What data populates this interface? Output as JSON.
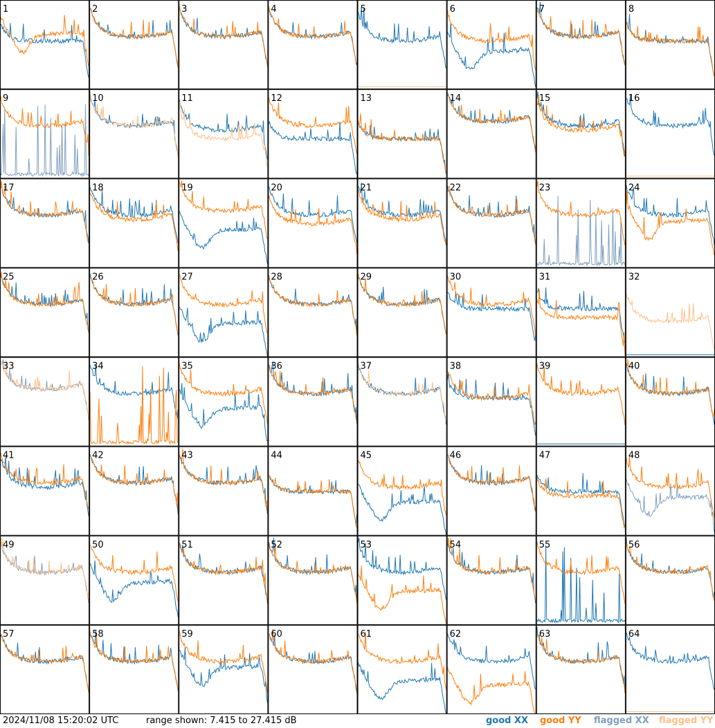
{
  "footer": {
    "timestamp": "2024/11/08 15:20:02 UTC",
    "range_text": "range shown: 7.415 to 27.415 dB"
  },
  "legend": {
    "good_xx": "good XX",
    "good_yy": "good YY",
    "flagged_xx": "flagged XX",
    "flagged_yy": "flagged YY"
  },
  "colors": {
    "good_xx": "#1f77b4",
    "good_yy": "#ff7f0e",
    "flagged_xx": "#7f9fbf",
    "flagged_yy": "#ffc08a"
  },
  "chart_data": {
    "type": "line",
    "grid": "8x8",
    "ylim": [
      7.415,
      27.415
    ],
    "panel_labels": [
      "1",
      "2",
      "3",
      "4",
      "5",
      "6",
      "7",
      "8",
      "9",
      "10",
      "11",
      "12",
      "13",
      "14",
      "15",
      "16",
      "17",
      "18",
      "19",
      "20",
      "21",
      "22",
      "23",
      "24",
      "25",
      "26",
      "27",
      "28",
      "29",
      "30",
      "31",
      "32",
      "33",
      "34",
      "35",
      "36",
      "37",
      "38",
      "39",
      "40",
      "41",
      "42",
      "43",
      "44",
      "45",
      "46",
      "47",
      "48",
      "49",
      "50",
      "51",
      "52",
      "53",
      "54",
      "55",
      "56",
      "57",
      "58",
      "59",
      "60",
      "61",
      "62",
      "63",
      "64"
    ],
    "panels": [
      {
        "xx": "good",
        "yy": "good",
        "xx_shape": "flat",
        "yy_shape": "dip",
        "xx_level": 0.55,
        "yy_level": 0.6
      },
      {
        "xx": "good",
        "yy": "good",
        "xx_shape": "bowl",
        "yy_shape": "bowl",
        "xx_level": 0.6,
        "yy_level": 0.6
      },
      {
        "xx": "good",
        "yy": "good",
        "xx_shape": "bowl",
        "yy_shape": "bowl",
        "xx_level": 0.6,
        "yy_level": 0.6
      },
      {
        "xx": "good",
        "yy": "good",
        "xx_shape": "bowl",
        "yy_shape": "bowl",
        "xx_level": 0.6,
        "yy_level": 0.6
      },
      {
        "xx": "good",
        "yy": "flagged",
        "xx_shape": "bowl",
        "yy_shape": "zero",
        "xx_level": 0.55,
        "yy_level": 0.0
      },
      {
        "xx": "good",
        "yy": "good",
        "xx_shape": "dip",
        "yy_shape": "bowl",
        "xx_level": 0.4,
        "yy_level": 0.55
      },
      {
        "xx": "good",
        "yy": "good",
        "xx_shape": "bowl",
        "yy_shape": "bowl",
        "xx_level": 0.6,
        "yy_level": 0.6
      },
      {
        "xx": "good",
        "yy": "good",
        "xx_shape": "flat",
        "yy_shape": "flat",
        "xx_level": 0.55,
        "yy_level": 0.55
      },
      {
        "xx": "flagged",
        "yy": "good",
        "xx_shape": "spiky_low",
        "yy_shape": "bowl",
        "xx_level": 0.05,
        "yy_level": 0.6
      },
      {
        "xx": "good",
        "yy": "flagged",
        "xx_shape": "bowl",
        "yy_shape": "bowl",
        "xx_level": 0.6,
        "yy_level": 0.6
      },
      {
        "xx": "good",
        "yy": "flagged",
        "xx_shape": "bowl",
        "yy_shape": "bowl",
        "xx_level": 0.55,
        "yy_level": 0.45
      },
      {
        "xx": "good",
        "yy": "good",
        "xx_shape": "flat",
        "yy_shape": "bowl",
        "xx_level": 0.45,
        "yy_level": 0.6
      },
      {
        "xx": "good",
        "yy": "good",
        "xx_shape": "flat",
        "yy_shape": "flat",
        "xx_level": 0.45,
        "yy_level": 0.45
      },
      {
        "xx": "good",
        "yy": "good",
        "xx_shape": "bowl",
        "yy_shape": "bowl",
        "xx_level": 0.65,
        "yy_level": 0.65
      },
      {
        "xx": "good",
        "yy": "good",
        "xx_shape": "bowl",
        "yy_shape": "bowl",
        "xx_level": 0.6,
        "yy_level": 0.55
      },
      {
        "xx": "good",
        "yy": "flagged",
        "xx_shape": "bowl",
        "yy_shape": "zero",
        "xx_level": 0.6,
        "yy_level": 0.0
      },
      {
        "xx": "good",
        "yy": "good",
        "xx_shape": "bowl",
        "yy_shape": "bowl",
        "xx_level": 0.6,
        "yy_level": 0.6
      },
      {
        "xx": "good",
        "yy": "good",
        "xx_shape": "bowl",
        "yy_shape": "bowl",
        "xx_level": 0.6,
        "yy_level": 0.55
      },
      {
        "xx": "good",
        "yy": "good",
        "xx_shape": "dip",
        "yy_shape": "bowl",
        "xx_level": 0.4,
        "yy_level": 0.65
      },
      {
        "xx": "good",
        "yy": "good",
        "xx_shape": "bowl",
        "yy_shape": "bowl",
        "xx_level": 0.6,
        "yy_level": 0.5
      },
      {
        "xx": "good",
        "yy": "good",
        "xx_shape": "bowl",
        "yy_shape": "bowl",
        "xx_level": 0.6,
        "yy_level": 0.55
      },
      {
        "xx": "good",
        "yy": "good",
        "xx_shape": "bowl",
        "yy_shape": "bowl",
        "xx_level": 0.6,
        "yy_level": 0.6
      },
      {
        "xx": "flagged",
        "yy": "good",
        "xx_shape": "spiky_low",
        "yy_shape": "bowl",
        "xx_level": 0.05,
        "yy_level": 0.6
      },
      {
        "xx": "good",
        "yy": "good",
        "xx_shape": "bowl",
        "yy_shape": "dip",
        "xx_level": 0.6,
        "yy_level": 0.5
      },
      {
        "xx": "good",
        "yy": "good",
        "xx_shape": "bowl",
        "yy_shape": "bowl",
        "xx_level": 0.6,
        "yy_level": 0.6
      },
      {
        "xx": "good",
        "yy": "good",
        "xx_shape": "bowl",
        "yy_shape": "bowl",
        "xx_level": 0.6,
        "yy_level": 0.6
      },
      {
        "xx": "good",
        "yy": "good",
        "xx_shape": "dip",
        "yy_shape": "bowl",
        "xx_level": 0.35,
        "yy_level": 0.6
      },
      {
        "xx": "good",
        "yy": "good",
        "xx_shape": "bowl",
        "yy_shape": "bowl",
        "xx_level": 0.6,
        "yy_level": 0.6
      },
      {
        "xx": "good",
        "yy": "good",
        "xx_shape": "bowl",
        "yy_shape": "bowl",
        "xx_level": 0.6,
        "yy_level": 0.6
      },
      {
        "xx": "good",
        "yy": "good",
        "xx_shape": "flat",
        "yy_shape": "bowl",
        "xx_level": 0.55,
        "yy_level": 0.6
      },
      {
        "xx": "good",
        "yy": "good",
        "xx_shape": "flat",
        "yy_shape": "flat",
        "xx_level": 0.55,
        "yy_level": 0.45
      },
      {
        "xx": "good",
        "yy": "flagged",
        "xx_shape": "zero",
        "yy_shape": "bowl",
        "xx_level": 0.0,
        "yy_level": 0.4
      },
      {
        "xx": "flagged",
        "yy": "flagged",
        "xx_shape": "bowl",
        "yy_shape": "bowl",
        "xx_level": 0.65,
        "yy_level": 0.65
      },
      {
        "xx": "good",
        "yy": "good",
        "xx_shape": "bowl",
        "yy_shape": "spiky_low",
        "xx_level": 0.6,
        "yy_level": 0.05
      },
      {
        "xx": "good",
        "yy": "good",
        "xx_shape": "dip",
        "yy_shape": "bowl",
        "xx_level": 0.4,
        "yy_level": 0.6
      },
      {
        "xx": "good",
        "yy": "good",
        "xx_shape": "bowl",
        "yy_shape": "bowl",
        "xx_level": 0.6,
        "yy_level": 0.6
      },
      {
        "xx": "good",
        "yy": "flagged",
        "xx_shape": "bowl",
        "yy_shape": "bowl",
        "xx_level": 0.6,
        "yy_level": 0.6
      },
      {
        "xx": "good",
        "yy": "good",
        "xx_shape": "flat",
        "yy_shape": "bowl",
        "xx_level": 0.55,
        "yy_level": 0.55
      },
      {
        "xx": "good",
        "yy": "good",
        "xx_shape": "zero",
        "yy_shape": "bowl",
        "xx_level": 0.0,
        "yy_level": 0.6
      },
      {
        "xx": "good",
        "yy": "good",
        "xx_shape": "bowl",
        "yy_shape": "bowl",
        "xx_level": 0.6,
        "yy_level": 0.6
      },
      {
        "xx": "good",
        "yy": "good",
        "xx_shape": "bowl",
        "yy_shape": "bowl",
        "xx_level": 0.55,
        "yy_level": 0.6
      },
      {
        "xx": "good",
        "yy": "good",
        "xx_shape": "bowl",
        "yy_shape": "bowl",
        "xx_level": 0.6,
        "yy_level": 0.6
      },
      {
        "xx": "good",
        "yy": "good",
        "xx_shape": "bowl",
        "yy_shape": "bowl",
        "xx_level": 0.6,
        "yy_level": 0.6
      },
      {
        "xx": "good",
        "yy": "good",
        "xx_shape": "flat",
        "yy_shape": "flat",
        "xx_level": 0.5,
        "yy_level": 0.5
      },
      {
        "xx": "good",
        "yy": "good",
        "xx_shape": "dip",
        "yy_shape": "bowl",
        "xx_level": 0.35,
        "yy_level": 0.55
      },
      {
        "xx": "good",
        "yy": "good",
        "xx_shape": "bowl",
        "yy_shape": "bowl",
        "xx_level": 0.6,
        "yy_level": 0.6
      },
      {
        "xx": "good",
        "yy": "good",
        "xx_shape": "flat",
        "yy_shape": "flat",
        "xx_level": 0.5,
        "yy_level": 0.45
      },
      {
        "xx": "flagged",
        "yy": "good",
        "xx_shape": "dip",
        "yy_shape": "bowl",
        "xx_level": 0.4,
        "yy_level": 0.55
      },
      {
        "xx": "flagged",
        "yy": "flagged",
        "xx_shape": "bowl",
        "yy_shape": "bowl",
        "xx_level": 0.6,
        "yy_level": 0.6
      },
      {
        "xx": "good",
        "yy": "good",
        "xx_shape": "dip",
        "yy_shape": "bowl",
        "xx_level": 0.45,
        "yy_level": 0.6
      },
      {
        "xx": "good",
        "yy": "good",
        "xx_shape": "bowl",
        "yy_shape": "bowl",
        "xx_level": 0.6,
        "yy_level": 0.6
      },
      {
        "xx": "good",
        "yy": "good",
        "xx_shape": "bowl",
        "yy_shape": "bowl",
        "xx_level": 0.6,
        "yy_level": 0.6
      },
      {
        "xx": "good",
        "yy": "good",
        "xx_shape": "bowl",
        "yy_shape": "dip",
        "xx_level": 0.6,
        "yy_level": 0.35
      },
      {
        "xx": "good",
        "yy": "good",
        "xx_shape": "bowl",
        "yy_shape": "bowl",
        "xx_level": 0.6,
        "yy_level": 0.6
      },
      {
        "xx": "good",
        "yy": "good",
        "xx_shape": "spiky_low",
        "yy_shape": "bowl",
        "xx_level": 0.05,
        "yy_level": 0.6
      },
      {
        "xx": "good",
        "yy": "good",
        "xx_shape": "bowl",
        "yy_shape": "bowl",
        "xx_level": 0.6,
        "yy_level": 0.6
      },
      {
        "xx": "good",
        "yy": "good",
        "xx_shape": "bowl",
        "yy_shape": "bowl",
        "xx_level": 0.6,
        "yy_level": 0.6
      },
      {
        "xx": "good",
        "yy": "good",
        "xx_shape": "bowl",
        "yy_shape": "bowl",
        "xx_level": 0.6,
        "yy_level": 0.6
      },
      {
        "xx": "good",
        "yy": "good",
        "xx_shape": "dip",
        "yy_shape": "bowl",
        "xx_level": 0.5,
        "yy_level": 0.6
      },
      {
        "xx": "good",
        "yy": "good",
        "xx_shape": "bowl",
        "yy_shape": "bowl",
        "xx_level": 0.6,
        "yy_level": 0.6
      },
      {
        "xx": "good",
        "yy": "good",
        "xx_shape": "dip",
        "yy_shape": "bowl",
        "xx_level": 0.35,
        "yy_level": 0.6
      },
      {
        "xx": "good",
        "yy": "good",
        "xx_shape": "bowl",
        "yy_shape": "dip",
        "xx_level": 0.6,
        "yy_level": 0.3
      },
      {
        "xx": "good",
        "yy": "good",
        "xx_shape": "bowl",
        "yy_shape": "bowl",
        "xx_level": 0.6,
        "yy_level": 0.6
      },
      {
        "xx": "good",
        "yy": "flagged",
        "xx_shape": "bowl",
        "yy_shape": "zero",
        "xx_level": 0.6,
        "yy_level": 0.0
      }
    ]
  }
}
